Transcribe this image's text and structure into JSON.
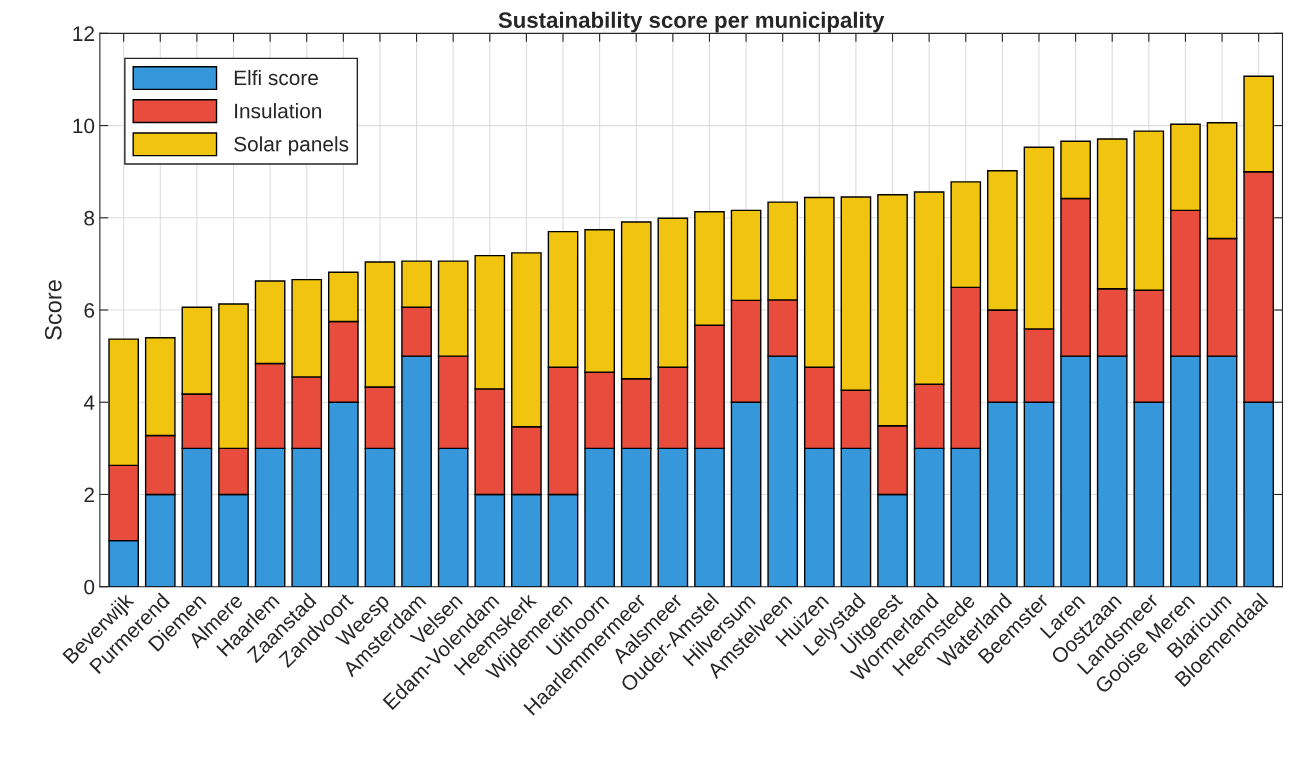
{
  "chart_data": {
    "type": "bar",
    "title": "Sustainability score per municipality",
    "ylabel": "Score",
    "categories": [
      "Beverwijk",
      "Purmerend",
      "Diemen",
      "Almere",
      "Haarlem",
      "Zaanstad",
      "Zandvoort",
      "Weesp",
      "Amsterdam",
      "Velsen",
      "Edam-Volendam",
      "Heemskerk",
      "Wijdemeren",
      "Uithoorn",
      "Haarlemmermeer",
      "Aalsmeer",
      "Ouder-Amstel",
      "Hilversum",
      "Amstelveen",
      "Huizen",
      "Lelystad",
      "Uitgeest",
      "Wormerland",
      "Heemstede",
      "Waterland",
      "Beemster",
      "Laren",
      "Oostzaan",
      "Landsmeer",
      "Gooise Meren",
      "Blaricum",
      "Bloemendaal"
    ],
    "stacked": true,
    "series": [
      {
        "name": "Elfi score",
        "color": "#3797db",
        "values": [
          1,
          2,
          3,
          2,
          3,
          3,
          4,
          3,
          5,
          3,
          2,
          2,
          2,
          3,
          3,
          3,
          3,
          4,
          5,
          3,
          3,
          2,
          3,
          3,
          4,
          4,
          5,
          5,
          4,
          5,
          5,
          4
        ]
      },
      {
        "name": "Insulation",
        "color": "#e74c3c",
        "values": [
          1.63,
          1.28,
          1.18,
          1.0,
          1.84,
          1.55,
          1.75,
          1.33,
          1.06,
          2.0,
          2.29,
          1.47,
          2.76,
          1.65,
          1.51,
          1.76,
          2.67,
          2.21,
          1.22,
          1.76,
          1.26,
          1.49,
          1.39,
          3.49,
          2.0,
          1.59,
          3.42,
          1.46,
          2.43,
          3.16,
          2.55,
          5.0
        ]
      },
      {
        "name": "Solar panels",
        "color": "#f1c40f",
        "values": [
          2.74,
          2.12,
          1.88,
          3.13,
          1.79,
          2.11,
          1.07,
          2.71,
          1.0,
          2.06,
          2.89,
          3.77,
          2.94,
          3.09,
          3.4,
          3.23,
          2.46,
          1.95,
          2.12,
          3.68,
          4.19,
          5.01,
          4.17,
          2.29,
          3.02,
          3.94,
          1.24,
          3.25,
          3.45,
          1.87,
          2.51,
          2.07
        ]
      }
    ],
    "ylim": [
      0,
      12
    ],
    "yticks": [
      0,
      2,
      4,
      6,
      8,
      10,
      12
    ],
    "grid": true,
    "legend": "top left"
  }
}
